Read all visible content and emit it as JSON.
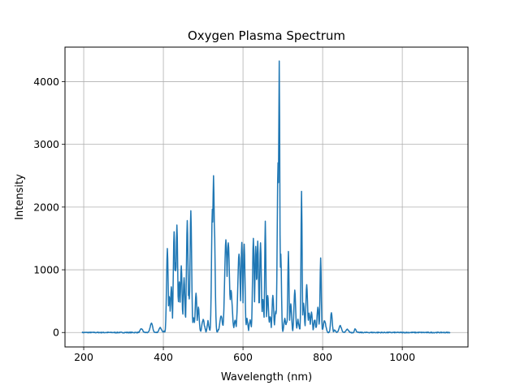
{
  "chart_data": {
    "type": "line",
    "title": "Oxygen Plasma Spectrum",
    "xlabel": "Wavelength (nm)",
    "ylabel": "Intensity",
    "xlim": [
      153,
      1165
    ],
    "ylim": [
      -230,
      4550
    ],
    "xticks": [
      200,
      400,
      600,
      800,
      1000
    ],
    "yticks": [
      0,
      1000,
      2000,
      3000,
      4000
    ],
    "grid": true,
    "series": [
      {
        "color": "#1f77b4",
        "peaks": [
          [
            345,
            60,
            3
          ],
          [
            370,
            150,
            3
          ],
          [
            392,
            80,
            3
          ],
          [
            410,
            1310,
            2
          ],
          [
            415,
            560,
            2
          ],
          [
            420,
            710,
            2
          ],
          [
            427,
            1590,
            2
          ],
          [
            430,
            1100,
            2
          ],
          [
            434,
            1690,
            2
          ],
          [
            440,
            780,
            2
          ],
          [
            445,
            1040,
            2
          ],
          [
            452,
            850,
            2
          ],
          [
            460,
            1760,
            2
          ],
          [
            464,
            600,
            2
          ],
          [
            469,
            1920,
            2
          ],
          [
            476,
            220,
            2
          ],
          [
            482,
            600,
            2
          ],
          [
            488,
            380,
            2
          ],
          [
            500,
            180,
            3
          ],
          [
            512,
            160,
            2
          ],
          [
            523,
            1960,
            2
          ],
          [
            526,
            2470,
            2
          ],
          [
            528,
            1700,
            2
          ],
          [
            545,
            250,
            3
          ],
          [
            557,
            1470,
            3
          ],
          [
            563,
            1420,
            3
          ],
          [
            570,
            640,
            3
          ],
          [
            580,
            180,
            2
          ],
          [
            590,
            1230,
            3
          ],
          [
            597,
            1420,
            2
          ],
          [
            603,
            1380,
            2
          ],
          [
            610,
            210,
            2
          ],
          [
            618,
            180,
            2
          ],
          [
            626,
            1480,
            2
          ],
          [
            632,
            1360,
            2
          ],
          [
            637,
            1430,
            2
          ],
          [
            644,
            1410,
            2
          ],
          [
            650,
            530,
            2
          ],
          [
            656,
            1750,
            1.5
          ],
          [
            662,
            580,
            2
          ],
          [
            668,
            240,
            2
          ],
          [
            675,
            570,
            2
          ],
          [
            682,
            330,
            2
          ],
          [
            688,
            2700,
            2
          ],
          [
            691,
            4320,
            1.4
          ],
          [
            695,
            1240,
            1.6
          ],
          [
            705,
            220,
            2
          ],
          [
            710,
            160,
            2
          ],
          [
            714,
            1280,
            1.5
          ],
          [
            720,
            430,
            2
          ],
          [
            730,
            660,
            2
          ],
          [
            738,
            190,
            2
          ],
          [
            747,
            2230,
            1.4
          ],
          [
            752,
            470,
            2
          ],
          [
            760,
            760,
            2
          ],
          [
            766,
            300,
            2
          ],
          [
            772,
            310,
            2
          ],
          [
            780,
            190,
            2
          ],
          [
            788,
            390,
            2
          ],
          [
            795,
            1170,
            1.5
          ],
          [
            805,
            170,
            3
          ],
          [
            822,
            320,
            2
          ],
          [
            830,
            40,
            2
          ],
          [
            844,
            110,
            3
          ],
          [
            862,
            50,
            3
          ],
          [
            882,
            60,
            2
          ]
        ]
      }
    ]
  }
}
